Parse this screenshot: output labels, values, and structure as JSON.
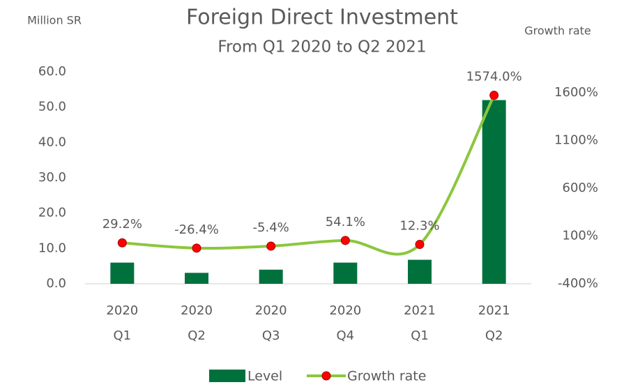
{
  "chart_data": {
    "type": "bar",
    "title": "Foreign Direct Investment",
    "subtitle": "From Q1 2020 to Q2 2021",
    "y_label": "Million SR",
    "y2_label": "Growth rate",
    "categories": [
      [
        "2020",
        "Q1"
      ],
      [
        "2020",
        "Q2"
      ],
      [
        "2020",
        "Q3"
      ],
      [
        "2020",
        "Q4"
      ],
      [
        "2021",
        "Q1"
      ],
      [
        "2021",
        "Q2"
      ]
    ],
    "series": [
      {
        "name": "Level",
        "type": "bar",
        "color": "#00713d",
        "values": [
          6.0,
          3.1,
          4.0,
          6.0,
          6.8,
          52.0
        ]
      },
      {
        "name": "Growth rate",
        "type": "line",
        "axis": "y2",
        "color": "#8cc63f",
        "marker_color": "#ff0000",
        "values": [
          29.2,
          -26.4,
          -5.4,
          54.1,
          12.3,
          1574.0
        ],
        "value_labels": [
          "29.2%",
          "-26.4%",
          "-5.4%",
          "54.1%",
          "12.3%",
          "1574.0%"
        ]
      }
    ],
    "ylim": [
      0,
      60
    ],
    "yticks": [
      {
        "value": 0,
        "label": "0.0"
      },
      {
        "value": 10,
        "label": "10.0"
      },
      {
        "value": 20,
        "label": "20.0"
      },
      {
        "value": 30,
        "label": "30.0"
      },
      {
        "value": 40,
        "label": "40.0"
      },
      {
        "value": 50,
        "label": "50.0"
      },
      {
        "value": 60,
        "label": "60.0"
      }
    ],
    "y2lim": [
      -400,
      1820
    ],
    "y2ticks": [
      {
        "value": -400,
        "label": "-400%"
      },
      {
        "value": 100,
        "label": "100%"
      },
      {
        "value": 600,
        "label": "600%"
      },
      {
        "value": 1100,
        "label": "1100%"
      },
      {
        "value": 1600,
        "label": "1600%"
      }
    ],
    "legend": "bottom"
  }
}
